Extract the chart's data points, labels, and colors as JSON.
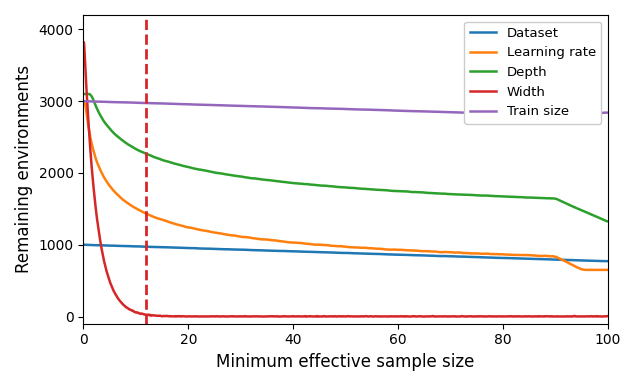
{
  "title": "",
  "xlabel": "Minimum effective sample size",
  "ylabel": "Remaining environments",
  "xlim": [
    0,
    100
  ],
  "ylim": [
    -100,
    4200
  ],
  "vline_x": 12,
  "vline_color": "#d62728",
  "legend_labels": [
    "Dataset",
    "Learning rate",
    "Depth",
    "Width",
    "Train size"
  ],
  "line_colors": [
    "#1f77b4",
    "#ff7f0e",
    "#2ca02c",
    "#d62728",
    "#9467bd"
  ],
  "background_color": "#ffffff",
  "tick_label_size": 10,
  "axis_label_size": 12
}
